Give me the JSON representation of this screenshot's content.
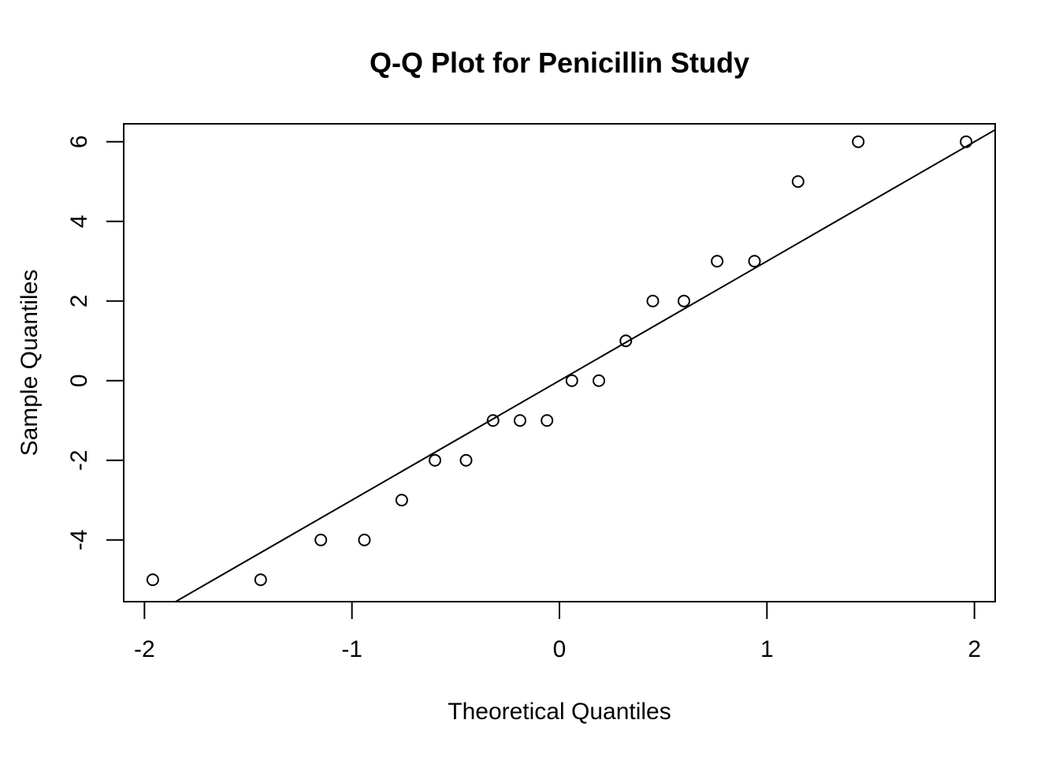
{
  "chart_data": {
    "type": "scatter",
    "title": "Q-Q Plot for Penicillin Study",
    "xlabel": "Theoretical Quantiles",
    "ylabel": "Sample Quantiles",
    "xlim": [
      -2.1,
      2.1
    ],
    "ylim": [
      -5.55,
      6.45
    ],
    "x_ticks": [
      -2,
      -1,
      0,
      1,
      2
    ],
    "x_tick_labels": [
      "-2",
      "-1",
      "0",
      "1",
      "2"
    ],
    "y_ticks": [
      -4,
      -2,
      0,
      2,
      4,
      6
    ],
    "y_tick_labels": [
      "-4",
      "-2",
      "0",
      "2",
      "4",
      "6"
    ],
    "grid": false,
    "series": [
      {
        "marker": "open-circle",
        "x": [
          -1.96,
          -1.44,
          -1.15,
          -0.94,
          -0.76,
          -0.6,
          -0.45,
          -0.32,
          -0.19,
          -0.06,
          0.06,
          0.19,
          0.32,
          0.45,
          0.6,
          0.76,
          0.94,
          1.15,
          1.44,
          1.96
        ],
        "y": [
          -5,
          -5,
          -4,
          -4,
          -3,
          -2,
          -2,
          -1,
          -1,
          -1,
          0,
          0,
          1,
          2,
          2,
          3,
          3,
          5,
          6,
          6
        ]
      }
    ],
    "reference_line": {
      "intercept": 0,
      "slope": 3.0
    }
  }
}
